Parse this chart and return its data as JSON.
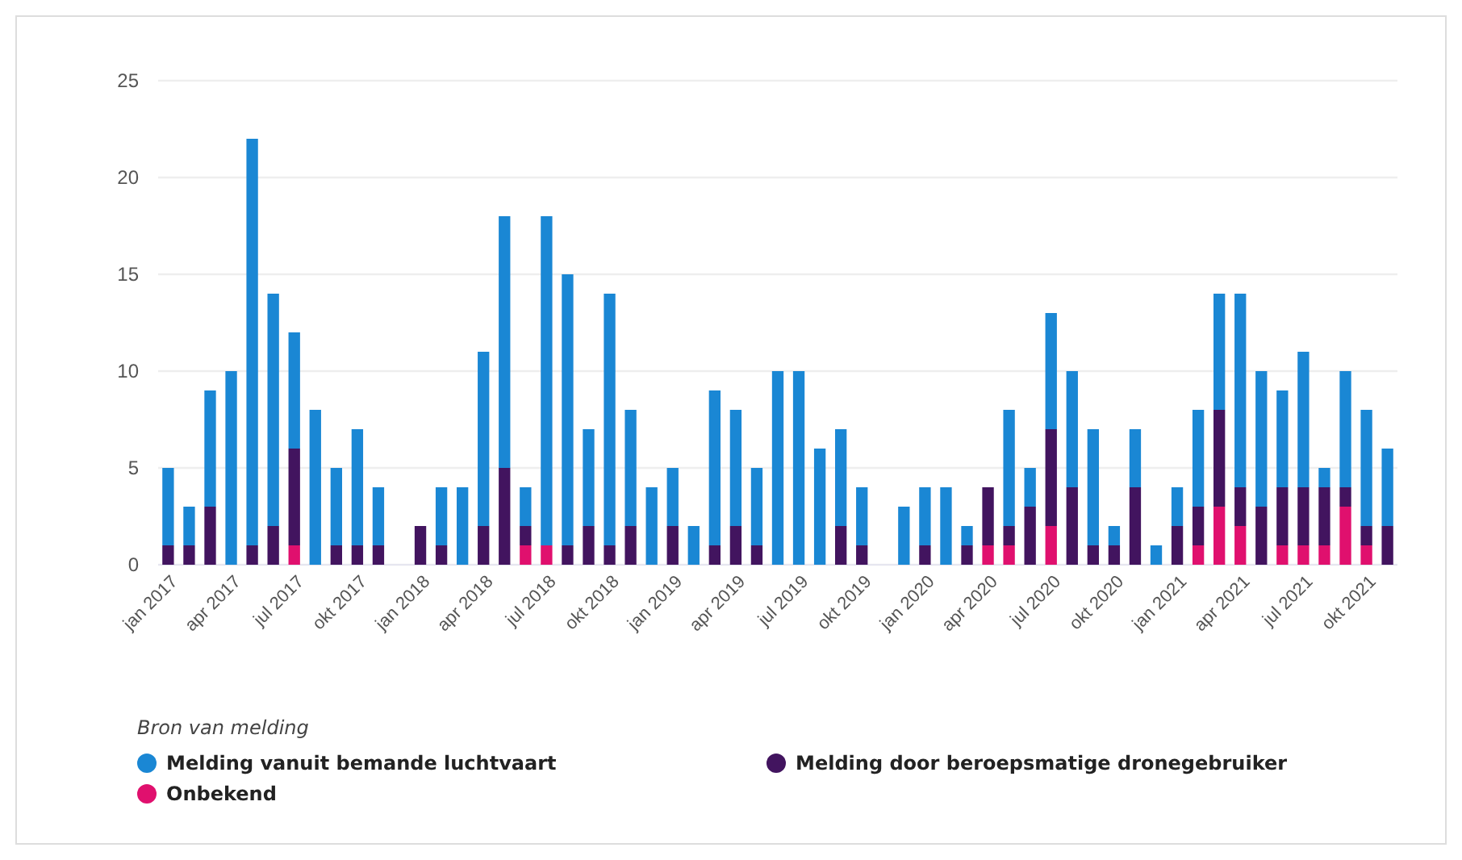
{
  "chart_data": {
    "type": "bar",
    "stacked": true,
    "categories": [
      "jan 2017",
      null,
      null,
      "apr 2017",
      null,
      null,
      "jul 2017",
      null,
      null,
      "okt 2017",
      null,
      null,
      "jan 2018",
      null,
      null,
      "apr 2018",
      null,
      null,
      "jul 2018",
      null,
      null,
      "okt 2018",
      null,
      null,
      "jan 2019",
      null,
      null,
      "apr 2019",
      null,
      null,
      "jul 2019",
      null,
      null,
      "okt 2019",
      null,
      null,
      "jan 2020",
      null,
      null,
      "apr 2020",
      null,
      null,
      "jul 2020",
      null,
      null,
      "okt 2020",
      null,
      null,
      "jan 2021",
      null,
      null,
      "apr 2021",
      null,
      null,
      "jul 2021",
      null,
      null,
      "okt 2021",
      null
    ],
    "series": [
      {
        "name": "Onbekend",
        "color": "#e0106e",
        "values": [
          0,
          0,
          0,
          0,
          0,
          0,
          1,
          0,
          0,
          0,
          0,
          0,
          0,
          0,
          0,
          0,
          0,
          1,
          1,
          0,
          0,
          0,
          0,
          0,
          0,
          0,
          0,
          0,
          0,
          0,
          0,
          0,
          0,
          0,
          0,
          0,
          0,
          0,
          0,
          1,
          1,
          0,
          2,
          0,
          0,
          0,
          0,
          0,
          0,
          1,
          3,
          2,
          0,
          1,
          1,
          1,
          3,
          1,
          0
        ]
      },
      {
        "name": "Melding door beroepsmatige dronegebruiker",
        "color": "#42145f",
        "values": [
          1,
          1,
          3,
          0,
          1,
          2,
          5,
          0,
          1,
          1,
          1,
          0,
          2,
          1,
          0,
          2,
          5,
          1,
          0,
          1,
          2,
          1,
          2,
          0,
          2,
          0,
          1,
          2,
          1,
          0,
          0,
          0,
          2,
          1,
          0,
          0,
          1,
          0,
          1,
          3,
          1,
          3,
          5,
          4,
          1,
          1,
          4,
          0,
          2,
          2,
          5,
          2,
          3,
          3,
          3,
          3,
          1,
          1,
          2
        ]
      },
      {
        "name": "Melding vanuit bemande luchtvaart",
        "color": "#1a87d4",
        "values": [
          4,
          2,
          6,
          10,
          21,
          12,
          6,
          8,
          4,
          6,
          3,
          0,
          0,
          3,
          4,
          9,
          13,
          2,
          17,
          14,
          5,
          13,
          6,
          4,
          3,
          2,
          8,
          6,
          4,
          10,
          10,
          6,
          5,
          3,
          0,
          3,
          3,
          4,
          1,
          0,
          6,
          2,
          6,
          6,
          6,
          1,
          3,
          1,
          2,
          5,
          6,
          10,
          7,
          5,
          7,
          1,
          6,
          6,
          4
        ]
      }
    ],
    "ylim": [
      0,
      25
    ],
    "yticks": [
      0,
      5,
      10,
      15,
      20,
      25
    ],
    "grid": "y",
    "legend_title": "Bron van melding",
    "legend": "bottom"
  }
}
